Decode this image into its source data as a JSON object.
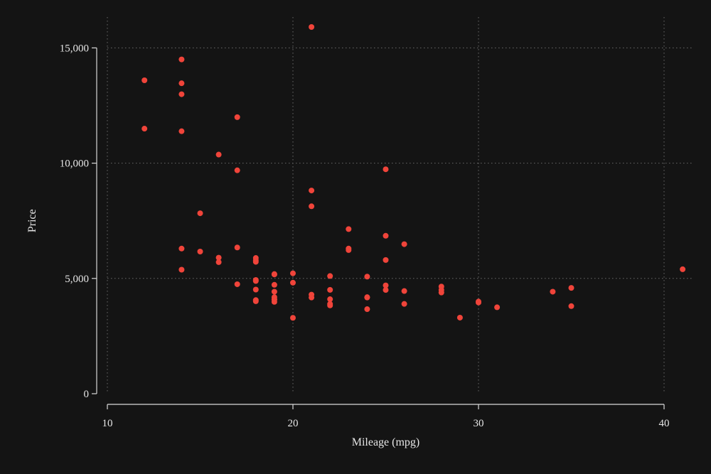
{
  "chart_data": {
    "type": "scatter",
    "title": "",
    "xlabel": "Mileage (mpg)",
    "ylabel": "Price",
    "xlim": [
      10,
      40
    ],
    "ylim": [
      0,
      15906
    ],
    "xticks": [
      10,
      20,
      30,
      40
    ],
    "xtick_labels": [
      "10",
      "20",
      "30",
      "40"
    ],
    "yticks": [
      0,
      5000,
      10000,
      15000
    ],
    "ytick_labels": [
      "0",
      "5,000",
      "10,000",
      "15,000"
    ],
    "grid": true,
    "legend": "none",
    "colors": {
      "background": "#141414",
      "marker": "#f0443a",
      "axis": "#d9d9d9",
      "grid": "#6a6a6a"
    },
    "series": [
      {
        "points": [
          [
            12,
            13594
          ],
          [
            12,
            11497
          ],
          [
            14,
            14500
          ],
          [
            14,
            13466
          ],
          [
            14,
            12990
          ],
          [
            14,
            11385
          ],
          [
            14,
            6295
          ],
          [
            14,
            5379
          ],
          [
            15,
            7827
          ],
          [
            15,
            6165
          ],
          [
            16,
            10372
          ],
          [
            16,
            5899
          ],
          [
            16,
            5705
          ],
          [
            17,
            11995
          ],
          [
            17,
            9690
          ],
          [
            17,
            6342
          ],
          [
            17,
            4749
          ],
          [
            18,
            5886
          ],
          [
            18,
            5788
          ],
          [
            18,
            5719
          ],
          [
            18,
            4934
          ],
          [
            18,
            4890
          ],
          [
            18,
            4516
          ],
          [
            18,
            4060
          ],
          [
            18,
            4010
          ],
          [
            19,
            5189
          ],
          [
            19,
            5172
          ],
          [
            19,
            4723
          ],
          [
            19,
            4425
          ],
          [
            19,
            4187
          ],
          [
            19,
            4082
          ],
          [
            19,
            3984
          ],
          [
            19,
            4099
          ],
          [
            20,
            5222
          ],
          [
            20,
            4816
          ],
          [
            20,
            3291
          ],
          [
            21,
            15906
          ],
          [
            21,
            8814
          ],
          [
            21,
            8129
          ],
          [
            21,
            4296
          ],
          [
            21,
            4172
          ],
          [
            22,
            5104
          ],
          [
            22,
            4504
          ],
          [
            22,
            4099
          ],
          [
            22,
            3895
          ],
          [
            22,
            3829
          ],
          [
            23,
            7140
          ],
          [
            23,
            6295
          ],
          [
            23,
            6229
          ],
          [
            24,
            5079
          ],
          [
            24,
            4172
          ],
          [
            24,
            4187
          ],
          [
            24,
            3667
          ],
          [
            25,
            9735
          ],
          [
            25,
            6850
          ],
          [
            25,
            5799
          ],
          [
            25,
            4697
          ],
          [
            25,
            4499
          ],
          [
            26,
            6486
          ],
          [
            26,
            4453
          ],
          [
            26,
            3895
          ],
          [
            28,
            4647
          ],
          [
            28,
            4500
          ],
          [
            28,
            4389
          ],
          [
            29,
            3299
          ],
          [
            30,
            3995
          ],
          [
            30,
            3955
          ],
          [
            31,
            3748
          ],
          [
            34,
            4425
          ],
          [
            35,
            4589
          ],
          [
            35,
            3798
          ],
          [
            41,
            5397
          ]
        ]
      }
    ]
  }
}
